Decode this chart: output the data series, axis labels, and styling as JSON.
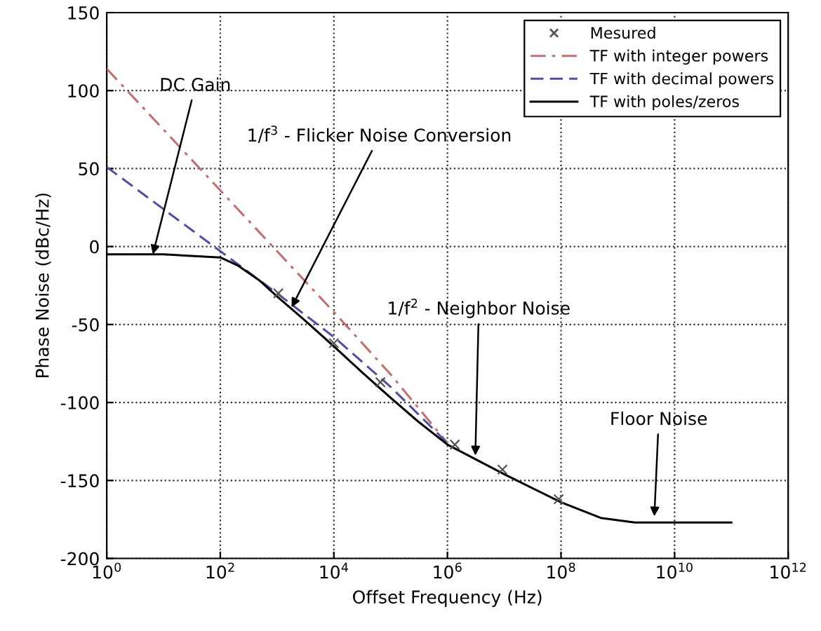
{
  "chart_data": {
    "type": "line",
    "xlabel": "Offset Frequency (Hz)",
    "ylabel": "Phase Noise (dBc/Hz)",
    "xlim": [
      1,
      1000000000000
    ],
    "ylim": [
      -200,
      150
    ],
    "log": "x",
    "xticks": [
      {
        "value": 1,
        "label": "10$^{0}$"
      },
      {
        "value": 100,
        "label": "10$^{2}$"
      },
      {
        "value": 10000,
        "label": "10$^{4}$"
      },
      {
        "value": 1000000,
        "label": "10$^{6}$"
      },
      {
        "value": 100000000,
        "label": "10$^{8}$"
      },
      {
        "value": 10000000000,
        "label": "10$^{10}$"
      },
      {
        "value": 1000000000000,
        "label": "10$^{12}$"
      }
    ],
    "yticks": [
      -200,
      -150,
      -100,
      -50,
      0,
      50,
      100,
      150
    ],
    "grid": true,
    "legend": "top right",
    "series": [
      {
        "name": "Mesured",
        "type": "scatter",
        "marker": "cross",
        "color": "#555555",
        "x": [
          1050,
          10000,
          66000,
          1350000,
          9300000,
          91000000
        ],
        "values": [
          -30,
          -62,
          -87,
          -127,
          -143,
          -162
        ]
      },
      {
        "name": "TF with integer powers",
        "line_style": "dashdot",
        "color": "#c07070",
        "x": [
          1,
          10,
          100,
          1000,
          10000,
          100000,
          300000,
          1000000
        ],
        "values": [
          114,
          75,
          36,
          -3,
          -42,
          -82,
          -103,
          -126
        ]
      },
      {
        "name": "TF with decimal powers",
        "line_style": "dashed",
        "color": "#5050a0",
        "x": [
          1,
          10,
          100,
          1000,
          10000,
          100000,
          1000000
        ],
        "values": [
          51,
          24,
          -3,
          -30,
          -58,
          -90,
          -126
        ]
      },
      {
        "name": "TF with poles/zeros",
        "line_style": "solid",
        "color": "#000000",
        "x": [
          1,
          10,
          100,
          200,
          500,
          1000,
          3000,
          10000,
          30000,
          100000,
          300000,
          1000000,
          10000000,
          100000000,
          500000000,
          2000000000,
          100000000000
        ],
        "values": [
          -5,
          -5,
          -7,
          -12,
          -22,
          -32,
          -47,
          -64,
          -80,
          -97,
          -112,
          -127,
          -146,
          -164,
          -174,
          -177,
          -177
        ]
      }
    ],
    "annotations": [
      {
        "text": "DC Gain",
        "x": 6.5,
        "y": -5
      },
      {
        "text": "1/f$^{3}$ - Flicker Noise Conversion",
        "x": 1800,
        "y": -39
      },
      {
        "text": "1/f$^{2}$ - Neighbor Noise",
        "x": 3100000,
        "y": -134
      },
      {
        "text": "Floor Noise",
        "x": 4400000000,
        "y": -173
      }
    ]
  }
}
